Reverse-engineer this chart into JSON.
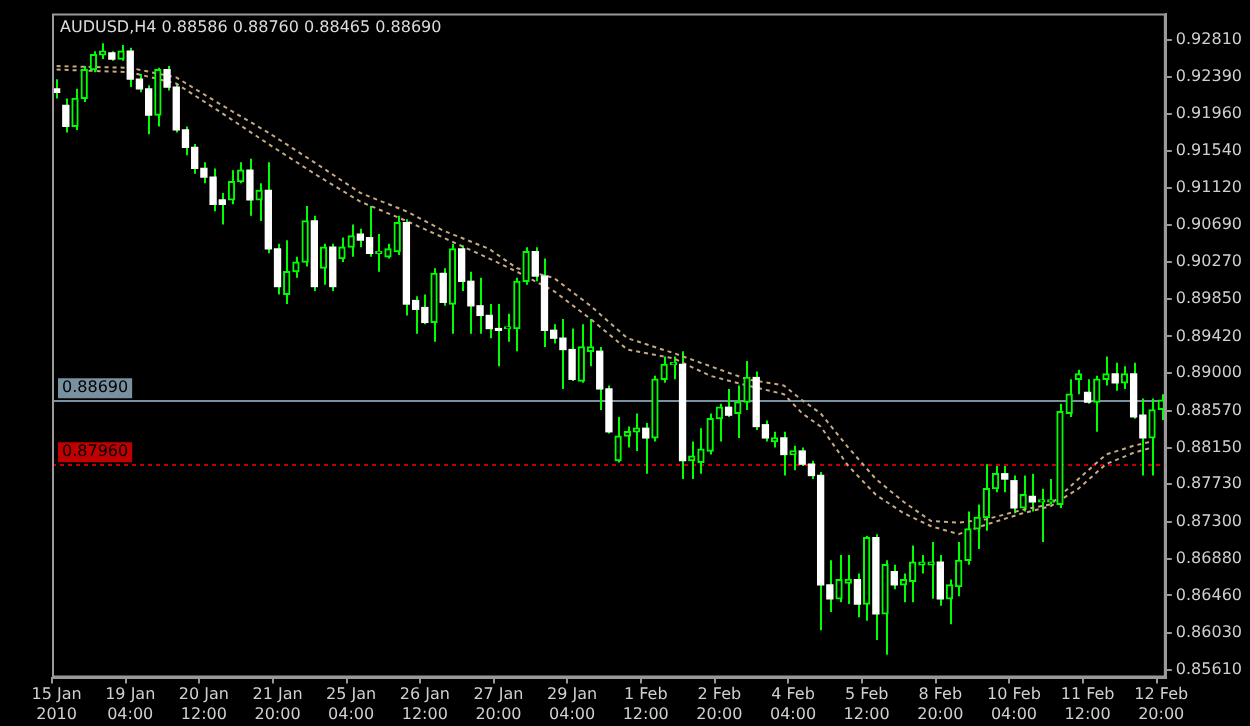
{
  "chart_data": {
    "type": "candlestick",
    "title": "AUDUSD,H4 0.88586 0.88760 0.88465 0.88690",
    "categories": [
      "15 Jan 2010",
      null,
      null,
      null,
      null,
      null,
      null,
      null,
      "19 Jan 04:00",
      null,
      null,
      null,
      null,
      null,
      null,
      null,
      "20 Jan 12:00",
      null,
      null,
      null,
      null,
      null,
      null,
      null,
      "21 Jan 20:00",
      null,
      null,
      null,
      null,
      null,
      null,
      null,
      "25 Jan 04:00",
      null,
      null,
      null,
      null,
      null,
      null,
      null,
      "26 Jan 12:00",
      null,
      null,
      null,
      null,
      null,
      null,
      null,
      "27 Jan 20:00",
      null,
      null,
      null,
      null,
      null,
      null,
      null,
      "29 Jan 04:00",
      null,
      null,
      null,
      null,
      null,
      null,
      null,
      "1 Feb 12:00",
      null,
      null,
      null,
      null,
      null,
      null,
      null,
      "2 Feb 20:00",
      null,
      null,
      null,
      null,
      null,
      null,
      null,
      "4 Feb 04:00",
      null,
      null,
      null,
      null,
      null,
      null,
      null,
      "5 Feb 12:00",
      null,
      null,
      null,
      null,
      null,
      null,
      null,
      "8 Feb 20:00",
      null,
      null,
      null,
      null,
      null,
      null,
      null,
      "10 Feb 04:00",
      null,
      null,
      null,
      null,
      null,
      null,
      null,
      "11 Feb 12:00",
      null,
      null,
      null,
      null,
      null,
      null,
      null,
      "12 Feb 20:00"
    ],
    "color": "#00ff00",
    "colors": [
      "#ffffff",
      "#ffffff",
      "#00ff00",
      "#00ff00",
      "#00ff00",
      "#00ff00",
      "#ffffff",
      "#00ff00",
      "#ffffff",
      "#ffffff",
      "#ffffff",
      "#00ff00",
      "#ffffff",
      "#ffffff",
      "#ffffff",
      "#ffffff",
      "#ffffff",
      "#ffffff",
      "#ffffff",
      "#00ff00",
      "#00ff00",
      "#ffffff",
      "#00ff00",
      "#ffffff",
      "#ffffff",
      "#00ff00",
      "#00ff00",
      "#00ff00",
      "#ffffff",
      "#00ff00",
      "#ffffff",
      "#00ff00",
      "#00ff00",
      "#ffffff",
      "#ffffff",
      "#00ff00",
      "#00ff00",
      "#00ff00",
      "#ffffff",
      "#ffffff",
      "#ffffff",
      "#00ff00",
      "#ffffff",
      "#00ff00",
      "#ffffff",
      "#ffffff",
      "#ffffff",
      "#ffffff",
      "#ffffff",
      "#00ff00",
      "#00ff00",
      "#00ff00",
      "#ffffff",
      "#ffffff",
      "#ffffff",
      "#ffffff",
      "#ffffff",
      "#00ff00",
      "#00ff00",
      "#ffffff",
      "#ffffff",
      "#00ff00",
      "#00ff00",
      "#00ff00",
      "#ffffff",
      "#00ff00",
      "#00ff00",
      "#00ff00",
      "#ffffff",
      "#00ff00",
      "#00ff00",
      "#00ff00",
      "#00ff00",
      "#ffffff",
      "#00ff00",
      "#00ff00",
      "#ffffff",
      "#ffffff",
      "#00ff00",
      "#ffffff",
      "#00ff00",
      "#ffffff",
      "#ffffff",
      "#ffffff",
      "#ffffff",
      "#00ff00",
      "#00ff00",
      "#ffffff",
      "#00ff00",
      "#ffffff",
      "#00ff00",
      "#ffffff",
      "#00ff00",
      "#00ff00",
      "#00ff00",
      "#00ff00",
      "#ffffff",
      "#00ff00",
      "#00ff00",
      "#00ff00",
      "#00ff00",
      "#00ff00",
      "#00ff00",
      "#ffffff",
      "#ffffff",
      "#00ff00",
      "#ffffff",
      "#00ff00",
      "#00ff00",
      "#00ff00",
      "#00ff00",
      "#00ff00",
      "#ffffff",
      "#00ff00",
      "#00ff00",
      "#ffffff",
      "#00ff00",
      "#ffffff",
      "#ffffff",
      "#00ff00",
      "#00ff00"
    ],
    "ohlc": [
      [
        0.9225,
        0.9236,
        0.9214,
        0.9221
      ],
      [
        0.9206,
        0.9214,
        0.9175,
        0.9182
      ],
      [
        0.9182,
        0.9225,
        0.9178,
        0.9214
      ],
      [
        0.9214,
        0.9251,
        0.921,
        0.9247
      ],
      [
        0.9247,
        0.9268,
        0.9244,
        0.9264
      ],
      [
        0.9264,
        0.9277,
        0.9259,
        0.9268
      ],
      [
        0.9266,
        0.9268,
        0.9257,
        0.9259
      ],
      [
        0.9259,
        0.9275,
        0.9257,
        0.9268
      ],
      [
        0.9268,
        0.9272,
        0.9227,
        0.9236
      ],
      [
        0.9236,
        0.9242,
        0.9221,
        0.9225
      ],
      [
        0.9225,
        0.9229,
        0.9173,
        0.9195
      ],
      [
        0.9195,
        0.9249,
        0.9182,
        0.9247
      ],
      [
        0.9247,
        0.9251,
        0.9223,
        0.9227
      ],
      [
        0.9227,
        0.9231,
        0.9175,
        0.9178
      ],
      [
        0.9178,
        0.9182,
        0.9149,
        0.9158
      ],
      [
        0.9158,
        0.9162,
        0.9128,
        0.9134
      ],
      [
        0.9134,
        0.9141,
        0.9117,
        0.9124
      ],
      [
        0.9124,
        0.9134,
        0.9085,
        0.9093
      ],
      [
        0.9098,
        0.9106,
        0.907,
        0.9093
      ],
      [
        0.9098,
        0.9132,
        0.9093,
        0.9119
      ],
      [
        0.9119,
        0.9141,
        0.9117,
        0.9132
      ],
      [
        0.9132,
        0.9145,
        0.908,
        0.9098
      ],
      [
        0.9098,
        0.9117,
        0.9074,
        0.9109
      ],
      [
        0.9109,
        0.9141,
        0.9037,
        0.9042
      ],
      [
        0.9042,
        0.9048,
        0.899,
        0.8999
      ],
      [
        0.899,
        0.9052,
        0.8979,
        0.9016
      ],
      [
        0.9016,
        0.9033,
        0.9009,
        0.9027
      ],
      [
        0.9027,
        0.9091,
        0.9022,
        0.9074
      ],
      [
        0.9074,
        0.908,
        0.8994,
        0.8999
      ],
      [
        0.902,
        0.9048,
        0.9001,
        0.9044
      ],
      [
        0.9044,
        0.9048,
        0.8994,
        0.8999
      ],
      [
        0.9031,
        0.9055,
        0.9027,
        0.9044
      ],
      [
        0.9044,
        0.907,
        0.9033,
        0.9057
      ],
      [
        0.9059,
        0.9065,
        0.9044,
        0.9052
      ],
      [
        0.9055,
        0.9091,
        0.9033,
        0.9037
      ],
      [
        0.9037,
        0.9059,
        0.9016,
        0.9039
      ],
      [
        0.9033,
        0.9048,
        0.9031,
        0.9042
      ],
      [
        0.9039,
        0.908,
        0.9035,
        0.9072
      ],
      [
        0.9072,
        0.9076,
        0.8966,
        0.8979
      ],
      [
        0.8983,
        0.8988,
        0.8945,
        0.8973
      ],
      [
        0.8975,
        0.899,
        0.8956,
        0.8958
      ],
      [
        0.8958,
        0.902,
        0.8936,
        0.9014
      ],
      [
        0.9014,
        0.902,
        0.8977,
        0.8981
      ],
      [
        0.8979,
        0.9048,
        0.8945,
        0.9042
      ],
      [
        0.9042,
        0.9046,
        0.8994,
        0.9005
      ],
      [
        0.9005,
        0.9016,
        0.8945,
        0.8977
      ],
      [
        0.8977,
        0.9009,
        0.8945,
        0.8966
      ],
      [
        0.8966,
        0.8979,
        0.894,
        0.8951
      ],
      [
        0.8951,
        0.8979,
        0.8908,
        0.8949
      ],
      [
        0.8951,
        0.8968,
        0.8936,
        0.8953
      ],
      [
        0.8951,
        0.9009,
        0.8925,
        0.9005
      ],
      [
        0.9005,
        0.9044,
        0.9001,
        0.9039
      ],
      [
        0.9039,
        0.9044,
        0.9005,
        0.9011
      ],
      [
        0.9011,
        0.9031,
        0.893,
        0.8949
      ],
      [
        0.8949,
        0.8956,
        0.8934,
        0.894
      ],
      [
        0.894,
        0.8962,
        0.8882,
        0.8927
      ],
      [
        0.8927,
        0.8951,
        0.8891,
        0.8893
      ],
      [
        0.8891,
        0.8956,
        0.8889,
        0.893
      ],
      [
        0.8925,
        0.8962,
        0.8908,
        0.893
      ],
      [
        0.8925,
        0.893,
        0.8858,
        0.8882
      ],
      [
        0.8882,
        0.8886,
        0.8831,
        0.8833
      ],
      [
        0.88,
        0.885,
        0.8798,
        0.8828
      ],
      [
        0.8828,
        0.8839,
        0.8815,
        0.8833
      ],
      [
        0.8833,
        0.8854,
        0.8811,
        0.8837
      ],
      [
        0.8837,
        0.8843,
        0.8785,
        0.8826
      ],
      [
        0.8826,
        0.8897,
        0.8822,
        0.8893
      ],
      [
        0.8893,
        0.8919,
        0.8889,
        0.891
      ],
      [
        0.891,
        0.8919,
        0.8893,
        0.8912
      ],
      [
        0.891,
        0.8925,
        0.8779,
        0.88
      ],
      [
        0.88,
        0.8822,
        0.8779,
        0.8805
      ],
      [
        0.8798,
        0.8837,
        0.8785,
        0.8813
      ],
      [
        0.8811,
        0.8854,
        0.8807,
        0.8848
      ],
      [
        0.8848,
        0.8865,
        0.8822,
        0.8861
      ],
      [
        0.8861,
        0.8882,
        0.885,
        0.8852
      ],
      [
        0.8854,
        0.8886,
        0.8826,
        0.8867
      ],
      [
        0.8867,
        0.8914,
        0.8858,
        0.8895
      ],
      [
        0.8895,
        0.8902,
        0.8835,
        0.8839
      ],
      [
        0.8841,
        0.8846,
        0.8822,
        0.8826
      ],
      [
        0.8822,
        0.8833,
        0.8815,
        0.8826
      ],
      [
        0.8826,
        0.8833,
        0.8783,
        0.8807
      ],
      [
        0.8807,
        0.8817,
        0.8789,
        0.8811
      ],
      [
        0.8811,
        0.8815,
        0.8794,
        0.8796
      ],
      [
        0.8796,
        0.88,
        0.8779,
        0.8783
      ],
      [
        0.8783,
        0.8787,
        0.8606,
        0.8658
      ],
      [
        0.8658,
        0.8686,
        0.8627,
        0.8642
      ],
      [
        0.8642,
        0.8692,
        0.8638,
        0.8664
      ],
      [
        0.866,
        0.8692,
        0.8636,
        0.8664
      ],
      [
        0.8664,
        0.8671,
        0.8621,
        0.8636
      ],
      [
        0.8636,
        0.8714,
        0.8617,
        0.8712
      ],
      [
        0.8712,
        0.8716,
        0.8595,
        0.8625
      ],
      [
        0.8625,
        0.8686,
        0.8578,
        0.8681
      ],
      [
        0.8673,
        0.8681,
        0.8653,
        0.8658
      ],
      [
        0.8658,
        0.8671,
        0.8638,
        0.8664
      ],
      [
        0.8662,
        0.8703,
        0.8638,
        0.8684
      ],
      [
        0.8681,
        0.8692,
        0.8671,
        0.8684
      ],
      [
        0.8681,
        0.8707,
        0.8642,
        0.8684
      ],
      [
        0.8684,
        0.8692,
        0.8634,
        0.8642
      ],
      [
        0.8642,
        0.8664,
        0.8613,
        0.8658
      ],
      [
        0.8656,
        0.8707,
        0.8645,
        0.8686
      ],
      [
        0.8686,
        0.8742,
        0.8681,
        0.8722
      ],
      [
        0.8722,
        0.875,
        0.8699,
        0.8735
      ],
      [
        0.8735,
        0.8796,
        0.872,
        0.8768
      ],
      [
        0.8768,
        0.8794,
        0.8764,
        0.8785
      ],
      [
        0.8785,
        0.8794,
        0.8764,
        0.8779
      ],
      [
        0.8777,
        0.8783,
        0.874,
        0.8746
      ],
      [
        0.8746,
        0.8783,
        0.8742,
        0.8761
      ],
      [
        0.8759,
        0.8785,
        0.8742,
        0.8753
      ],
      [
        0.8753,
        0.8768,
        0.8707,
        0.8755
      ],
      [
        0.8753,
        0.8779,
        0.875,
        0.8755
      ],
      [
        0.875,
        0.8865,
        0.8746,
        0.8856
      ],
      [
        0.8854,
        0.8893,
        0.885,
        0.8876
      ],
      [
        0.8893,
        0.8904,
        0.8876,
        0.8899
      ],
      [
        0.8878,
        0.8893,
        0.8865,
        0.8867
      ],
      [
        0.8867,
        0.8897,
        0.8833,
        0.8893
      ],
      [
        0.8893,
        0.8919,
        0.8886,
        0.8899
      ],
      [
        0.8899,
        0.8912,
        0.888,
        0.8889
      ],
      [
        0.8889,
        0.8908,
        0.8882,
        0.8899
      ],
      [
        0.8899,
        0.8912,
        0.8848,
        0.885
      ],
      [
        0.8852,
        0.8871,
        0.8783,
        0.8826
      ],
      [
        0.8826,
        0.8871,
        0.8783,
        0.8858
      ],
      [
        0.88586,
        0.8876,
        0.88465,
        0.8869
      ]
    ],
    "series": [
      {
        "type": "line",
        "color": "#c8aa82",
        "line_style": "dotted",
        "values": [
          0.9251,
          null,
          null,
          null,
          null,
          null,
          null,
          null,
          0.9249,
          null,
          null,
          null,
          null,
          0.9238,
          null,
          null,
          null,
          null,
          0.9206,
          null,
          null,
          null,
          null,
          0.9175,
          null,
          null,
          null,
          null,
          0.9141,
          null,
          null,
          null,
          null,
          0.9106,
          null,
          null,
          null,
          null,
          0.9085,
          null,
          null,
          null,
          0.9063,
          null,
          null,
          null,
          null,
          0.9042,
          null,
          null,
          0.902,
          null,
          null,
          null,
          0.9009,
          null,
          null,
          null,
          0.8977,
          null,
          null,
          null,
          0.894,
          null,
          null,
          null,
          null,
          0.8923,
          null,
          null,
          null,
          0.8908,
          null,
          null,
          null,
          0.8893,
          null,
          null,
          null,
          0.8886,
          null,
          0.8869,
          null,
          0.8854,
          null,
          null,
          0.8815,
          null,
          null,
          0.8779,
          null,
          null,
          0.8753,
          null,
          null,
          0.8731,
          null,
          null,
          0.8729,
          null,
          null,
          0.8733,
          null,
          null,
          null,
          0.8744,
          null,
          null,
          0.875,
          null,
          null,
          0.8779,
          null,
          null,
          0.8807,
          null,
          null,
          0.8817,
          null,
          0.8822,
          null
        ]
      },
      {
        "type": "line",
        "color": "#c8aa82",
        "line_style": "dotted",
        "values": [
          0.9247,
          null,
          null,
          null,
          null,
          null,
          null,
          null,
          0.9244,
          null,
          null,
          null,
          null,
          0.9231,
          null,
          null,
          null,
          null,
          0.9197,
          null,
          null,
          null,
          null,
          0.9162,
          null,
          null,
          null,
          null,
          0.9128,
          null,
          null,
          null,
          null,
          0.9096,
          null,
          null,
          null,
          null,
          0.9074,
          null,
          null,
          null,
          0.9055,
          null,
          null,
          null,
          null,
          0.9031,
          null,
          null,
          0.9016,
          null,
          null,
          null,
          0.8994,
          null,
          null,
          null,
          0.8962,
          null,
          null,
          null,
          0.8927,
          null,
          null,
          null,
          null,
          0.8917,
          null,
          null,
          null,
          0.8897,
          null,
          null,
          null,
          0.8886,
          null,
          null,
          null,
          0.8876,
          null,
          0.8854,
          null,
          0.8839,
          null,
          null,
          0.8794,
          null,
          null,
          0.8761,
          null,
          null,
          0.874,
          null,
          null,
          0.8725,
          null,
          null,
          0.8716,
          null,
          null,
          0.8727,
          null,
          null,
          null,
          0.874,
          null,
          null,
          0.8748,
          null,
          null,
          0.8768,
          null,
          null,
          0.8796,
          null,
          null,
          0.8809,
          null,
          0.8815,
          null
        ]
      }
    ],
    "ylim": [
      0.8552,
      0.9311
    ],
    "yticks": [
      {
        "value": 0.9281,
        "label": "0.92810"
      },
      {
        "value": 0.9239,
        "label": "0.92390"
      },
      {
        "value": 0.9196,
        "label": "0.91960"
      },
      {
        "value": 0.9154,
        "label": "0.91540"
      },
      {
        "value": 0.9112,
        "label": "0.91120"
      },
      {
        "value": 0.9069,
        "label": "0.90690"
      },
      {
        "value": 0.9027,
        "label": "0.90270"
      },
      {
        "value": 0.8985,
        "label": "0.89850"
      },
      {
        "value": 0.8942,
        "label": "0.89420"
      },
      {
        "value": 0.89,
        "label": "0.89000"
      },
      {
        "value": 0.8857,
        "label": "0.88570"
      },
      {
        "value": 0.8815,
        "label": "0.88150"
      },
      {
        "value": 0.8773,
        "label": "0.87730"
      },
      {
        "value": 0.873,
        "label": "0.87300"
      },
      {
        "value": 0.8688,
        "label": "0.86880"
      },
      {
        "value": 0.8646,
        "label": "0.86460"
      },
      {
        "value": 0.8603,
        "label": "0.86030"
      },
      {
        "value": 0.8561,
        "label": "0.85610"
      }
    ],
    "ref_lines": [
      {
        "axis": "y",
        "value": 0.8869,
        "label": "0.88690",
        "color": "#7890a0",
        "line_style": "solid"
      },
      {
        "axis": "y",
        "value": 0.8796,
        "label": "0.87960",
        "color": "#c00000",
        "line_style": "dotted"
      }
    ]
  }
}
